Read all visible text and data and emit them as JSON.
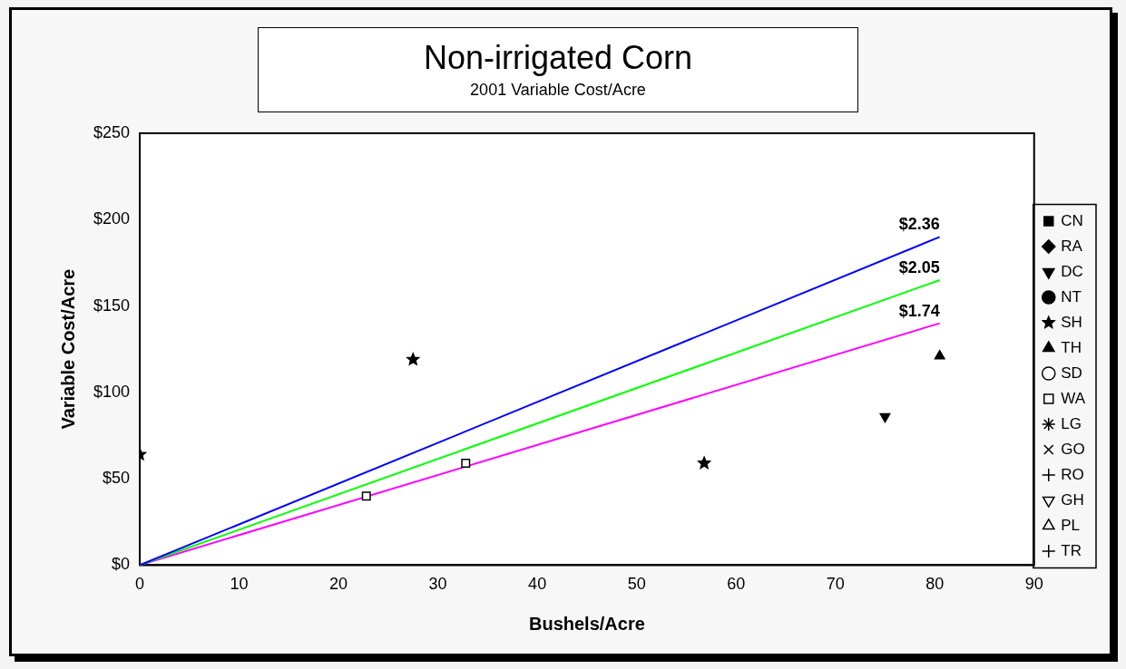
{
  "chart_data": {
    "type": "scatter",
    "title": "Non-irrigated Corn",
    "subtitle": "2001 Variable Cost/Acre",
    "xlabel": "Bushels/Acre",
    "ylabel": "Variable Cost/Acre",
    "xlim": [
      0,
      90
    ],
    "xticks": [
      0,
      10,
      20,
      30,
      40,
      50,
      60,
      70,
      80,
      90
    ],
    "ylim": [
      0,
      250
    ],
    "yticks": [
      {
        "value": 0,
        "label": "$0"
      },
      {
        "value": 50,
        "label": "$50"
      },
      {
        "value": 100,
        "label": "$100"
      },
      {
        "value": 150,
        "label": "$150"
      },
      {
        "value": 200,
        "label": "$200"
      },
      {
        "value": 250,
        "label": "$250"
      }
    ],
    "grid": false,
    "legend": "right",
    "series": [
      {
        "name": "CN",
        "color": "#000000",
        "marker": "square"
      },
      {
        "name": "RA",
        "color": "#000000",
        "marker": "diamond"
      },
      {
        "name": "DC",
        "color": "#000000",
        "marker": "triangle-down",
        "x": [
          75
        ],
        "values": [
          86
        ]
      },
      {
        "name": "NT",
        "color": "#000000",
        "marker": "circle"
      },
      {
        "name": "SH",
        "color": "#000000",
        "marker": "star",
        "x": [
          0,
          27.5,
          56.8
        ],
        "values": [
          64,
          119,
          59
        ]
      },
      {
        "name": "TH",
        "color": "#000000",
        "marker": "triangle",
        "x": [
          80.5
        ],
        "values": [
          121
        ]
      },
      {
        "name": "SD",
        "color": "#000000",
        "marker": "circle-open"
      },
      {
        "name": "WA",
        "color": "#000000",
        "marker": "square-open",
        "x": [
          22.8,
          32.8
        ],
        "values": [
          40,
          59
        ]
      },
      {
        "name": "LG",
        "color": "#000000",
        "marker": "asterisk"
      },
      {
        "name": "GO",
        "color": "#000000",
        "marker": "cross-diagonal"
      },
      {
        "name": "RO",
        "color": "#000000",
        "marker": "tri-down"
      },
      {
        "name": "GH",
        "color": "#000000",
        "marker": "triangle-down-open"
      },
      {
        "name": "PL",
        "color": "#000000",
        "marker": "triangle-open"
      },
      {
        "name": "TR",
        "color": "#000000",
        "marker": "cross"
      },
      {
        "name": "$2.36",
        "type": "line",
        "color": "#0000ff",
        "marker": "none",
        "x": [
          0,
          80.5
        ],
        "values": [
          0,
          190
        ]
      },
      {
        "name": "$2.05",
        "type": "line",
        "color": "#00ff00",
        "marker": "none",
        "x": [
          0,
          80.5
        ],
        "values": [
          0,
          165
        ]
      },
      {
        "name": "$1.74",
        "type": "line",
        "color": "#ff00ff",
        "marker": "none",
        "x": [
          0,
          80.5
        ],
        "values": [
          0,
          140
        ]
      }
    ]
  }
}
